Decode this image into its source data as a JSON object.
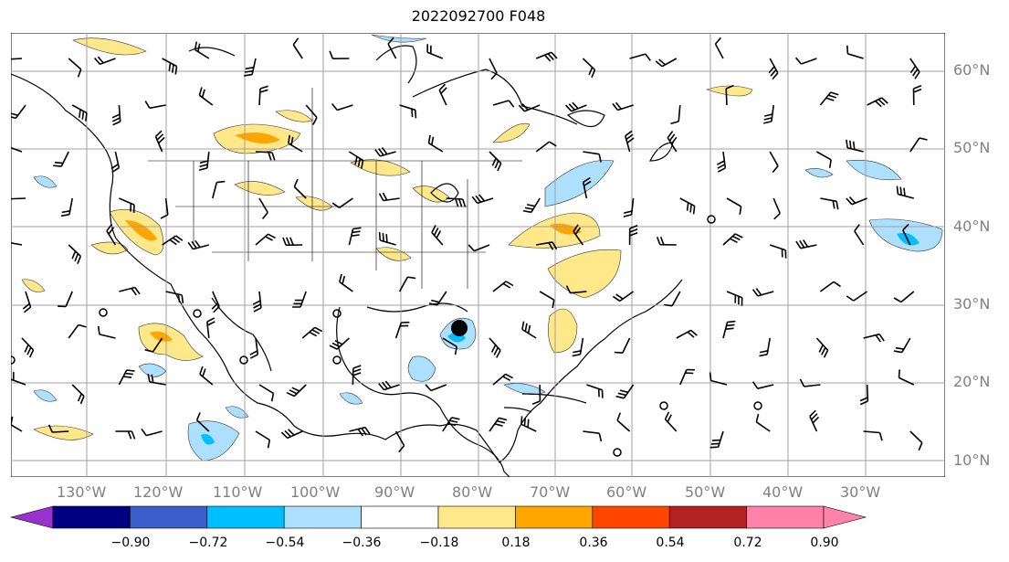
{
  "title": "2022092700 F048",
  "lat_labels": [
    "60°N",
    "50°N",
    "40°N",
    "30°N",
    "20°N",
    "10°N"
  ],
  "lon_labels": [
    "130°W",
    "120°W",
    "110°W",
    "100°W",
    "90°W",
    "80°W",
    "70°W",
    "60°W",
    "50°W",
    "40°W",
    "30°W"
  ],
  "colorbar": {
    "ticks": [
      "−0.90",
      "−0.72",
      "−0.54",
      "−0.36",
      "−0.18",
      "0.18",
      "0.36",
      "0.54",
      "0.72",
      "0.90"
    ],
    "colors": {
      "under": "#9932CC",
      "bins": [
        "#000080",
        "#3A5FCD",
        "#00BFFF",
        "#ADDFFF",
        "#FFFFFF",
        "#FFE88A",
        "#FFA500",
        "#FF4500",
        "#B22222",
        "#FF82AB"
      ]
    }
  },
  "marker": {
    "label": "",
    "lat": 27.0,
    "lon": -82.5
  }
}
